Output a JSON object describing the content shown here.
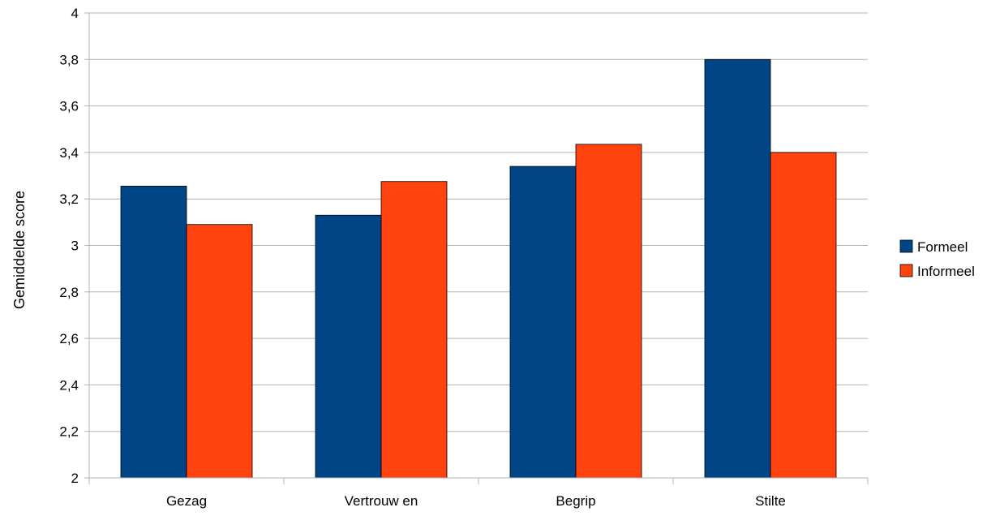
{
  "chart_data": {
    "type": "bar",
    "title": "",
    "xlabel": "",
    "ylabel": "Gemiddelde score",
    "ylim": [
      2,
      4
    ],
    "yticks": [
      2,
      2.2,
      2.4,
      2.6,
      2.8,
      3,
      3.2,
      3.4,
      3.6,
      3.8,
      4
    ],
    "ytick_labels": [
      "2",
      "2,2",
      "2,4",
      "2,6",
      "2,8",
      "3",
      "3,2",
      "3,4",
      "3,6",
      "3,8",
      "4"
    ],
    "categories": [
      "Gezag",
      "Vertrouw en",
      "Begrip",
      "Stilte"
    ],
    "series": [
      {
        "name": "Formeel",
        "values": [
          3.255,
          3.13,
          3.34,
          3.8
        ],
        "color": "#004586"
      },
      {
        "name": "Informeel",
        "values": [
          3.09,
          3.275,
          3.435,
          3.4
        ],
        "color": "#ff420e"
      }
    ],
    "grid": true,
    "legend": "right"
  }
}
